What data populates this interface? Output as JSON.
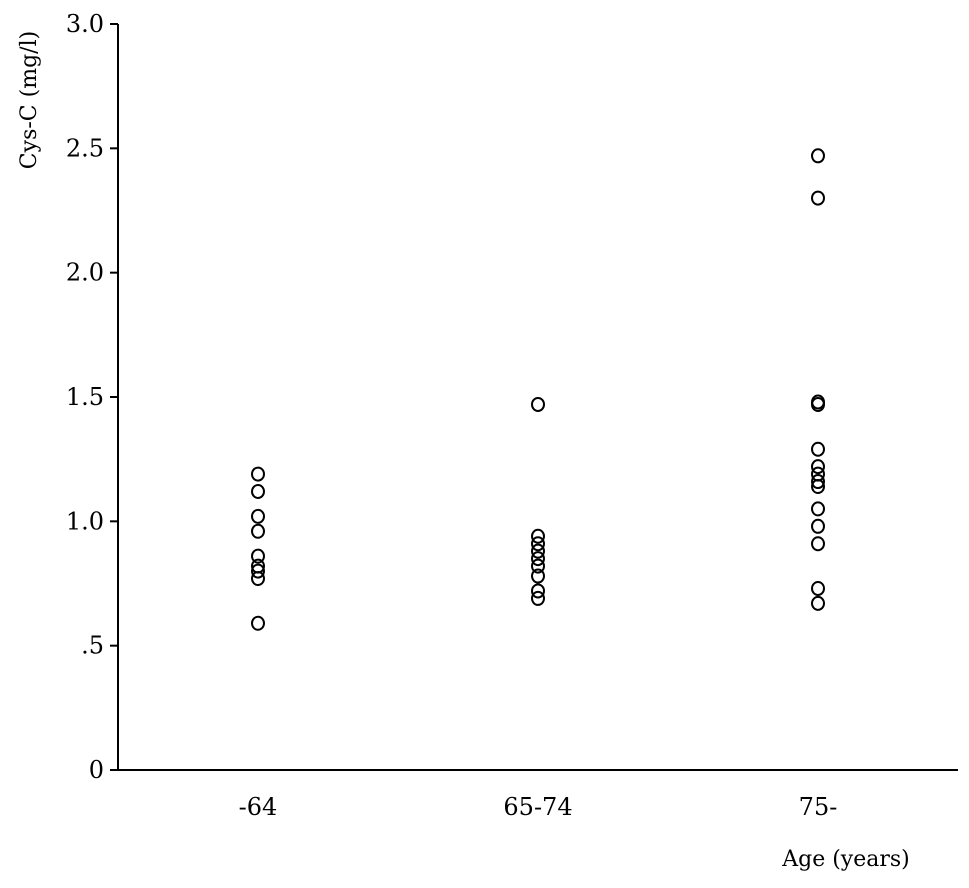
{
  "chart_data": {
    "type": "scatter",
    "title": "",
    "xlabel": "Age  (years)",
    "ylabel": "Cys-C (mg/l)",
    "categories": [
      "-64",
      "65-74",
      "75-"
    ],
    "ylim": [
      0,
      3.0
    ],
    "yticks": [
      {
        "value": 0,
        "label": "0"
      },
      {
        "value": 0.5,
        "label": ".5"
      },
      {
        "value": 1.0,
        "label": "1.0"
      },
      {
        "value": 1.5,
        "label": "1.5"
      },
      {
        "value": 2.0,
        "label": "2.0"
      },
      {
        "value": 2.5,
        "label": "2.5"
      },
      {
        "value": 3.0,
        "label": "3.0"
      }
    ],
    "grid": false,
    "marker": "open-circle",
    "groups": [
      {
        "category": "-64",
        "values": [
          1.19,
          1.12,
          1.02,
          0.96,
          0.86,
          0.82,
          0.8,
          0.77,
          0.59
        ]
      },
      {
        "category": "65-74",
        "values": [
          1.47,
          0.94,
          0.91,
          0.88,
          0.85,
          0.82,
          0.78,
          0.72,
          0.69
        ]
      },
      {
        "category": "75-",
        "values": [
          2.47,
          2.3,
          1.48,
          1.47,
          1.29,
          1.22,
          1.19,
          1.16,
          1.14,
          1.05,
          0.98,
          0.91,
          0.73,
          0.67
        ]
      }
    ]
  },
  "colors": {
    "axis": "#000000",
    "marker": "#000000",
    "background": "#ffffff"
  }
}
